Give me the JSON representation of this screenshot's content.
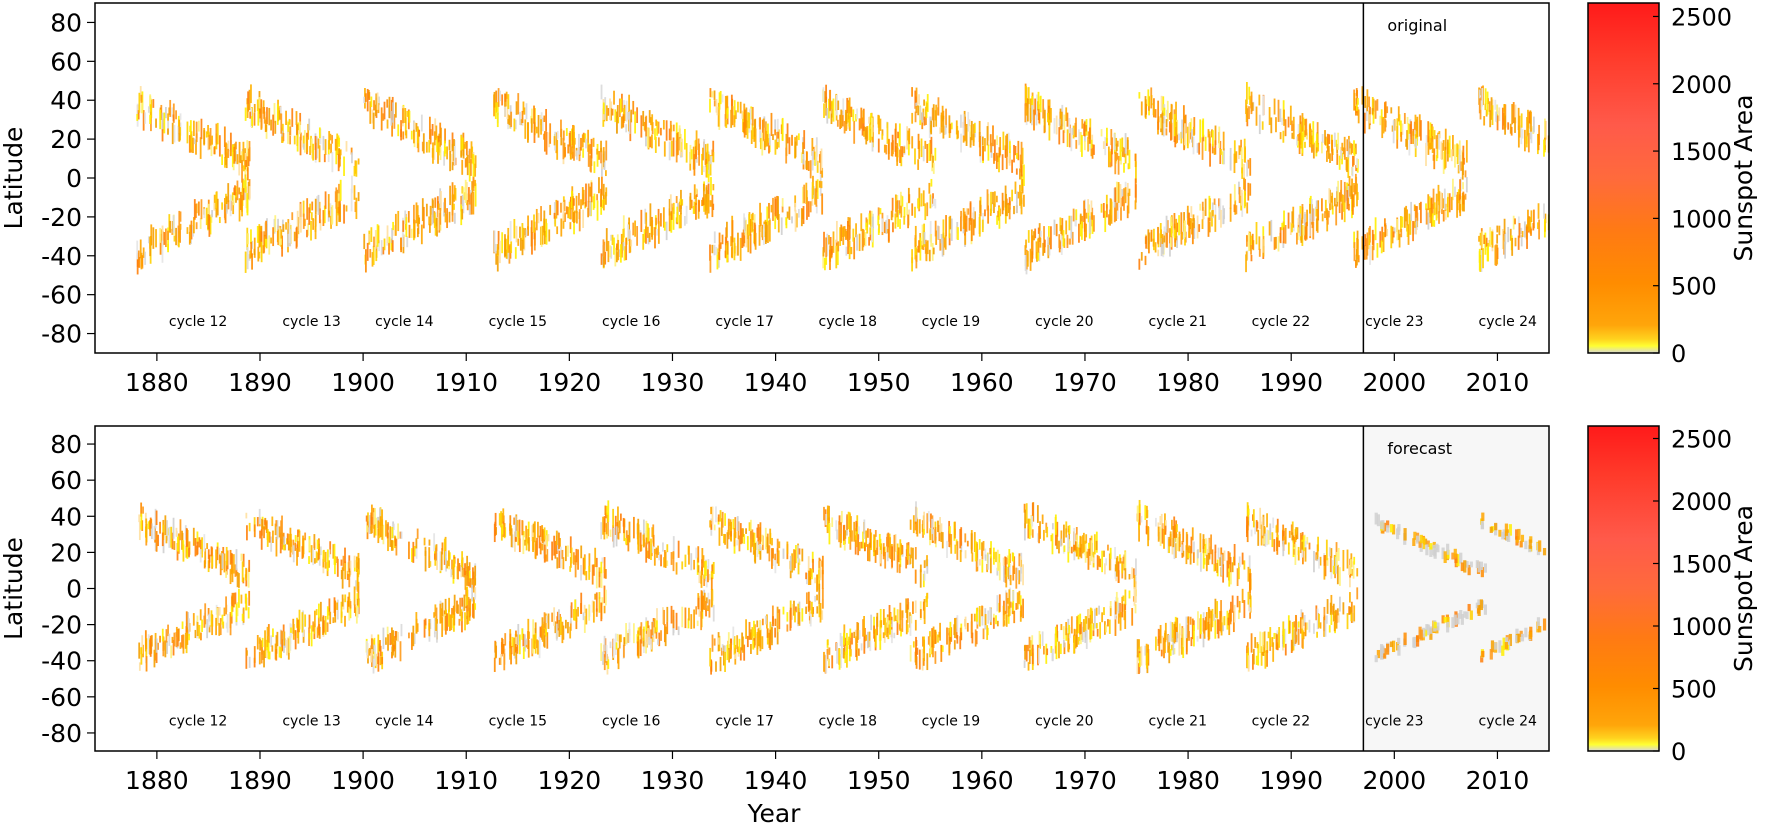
{
  "chart_data": [
    {
      "type": "heatmap",
      "subtitle": "original",
      "xlabel": "",
      "ylabel": "Latitude",
      "xlim": [
        1874,
        2015
      ],
      "ylim": [
        -90,
        90
      ],
      "x_ticks": [
        1880,
        1890,
        1900,
        1910,
        1920,
        1930,
        1940,
        1950,
        1960,
        1970,
        1980,
        1990,
        2000,
        2010
      ],
      "y_ticks": [
        80,
        60,
        40,
        20,
        0,
        -20,
        -40,
        -60,
        -80
      ],
      "split_year": 1997,
      "colorbar": {
        "label": "Sunspot Area",
        "ticks": [
          2500,
          2000,
          1500,
          1000,
          500,
          0
        ],
        "range": [
          0,
          2600
        ]
      },
      "cycles": [
        {
          "label": "cycle 12",
          "year": 1883.0,
          "label_year": 1884
        },
        {
          "label": "cycle 13",
          "year": 1893.5,
          "label_year": 1895
        },
        {
          "label": "cycle 14",
          "year": 1905.0,
          "label_year": 1904
        },
        {
          "label": "cycle 15",
          "year": 1917.5,
          "label_year": 1915
        },
        {
          "label": "cycle 16",
          "year": 1928.0,
          "label_year": 1926
        },
        {
          "label": "cycle 17",
          "year": 1938.5,
          "label_year": 1937
        },
        {
          "label": "cycle 18",
          "year": 1949.5,
          "label_year": 1947
        },
        {
          "label": "cycle 19",
          "year": 1958.0,
          "label_year": 1957
        },
        {
          "label": "cycle 20",
          "year": 1969.0,
          "label_year": 1968
        },
        {
          "label": "cycle 21",
          "year": 1980.0,
          "label_year": 1979
        },
        {
          "label": "cycle 22",
          "year": 1990.5,
          "label_year": 1989
        },
        {
          "label": "cycle 23",
          "year": 2001.0,
          "label_year": 2000
        },
        {
          "label": "cycle 24",
          "year": 2013.0,
          "label_year": 2011
        }
      ]
    },
    {
      "type": "heatmap",
      "subtitle": "forecast",
      "xlabel": "Year",
      "ylabel": "Latitude",
      "xlim": [
        1874,
        2015
      ],
      "ylim": [
        -90,
        90
      ],
      "x_ticks": [
        1880,
        1890,
        1900,
        1910,
        1920,
        1930,
        1940,
        1950,
        1960,
        1970,
        1980,
        1990,
        2000,
        2010
      ],
      "y_ticks": [
        80,
        60,
        40,
        20,
        0,
        -20,
        -40,
        -60,
        -80
      ],
      "split_year": 1997,
      "colorbar": {
        "label": "Sunspot Area",
        "ticks": [
          2500,
          2000,
          1500,
          1000,
          500,
          0
        ],
        "range": [
          0,
          2600
        ]
      },
      "cycles": [
        {
          "label": "cycle 12",
          "year": 1883.0,
          "label_year": 1884
        },
        {
          "label": "cycle 13",
          "year": 1893.5,
          "label_year": 1895
        },
        {
          "label": "cycle 14",
          "year": 1905.0,
          "label_year": 1904
        },
        {
          "label": "cycle 15",
          "year": 1917.5,
          "label_year": 1915
        },
        {
          "label": "cycle 16",
          "year": 1928.0,
          "label_year": 1926
        },
        {
          "label": "cycle 17",
          "year": 1938.5,
          "label_year": 1937
        },
        {
          "label": "cycle 18",
          "year": 1949.5,
          "label_year": 1947
        },
        {
          "label": "cycle 19",
          "year": 1958.0,
          "label_year": 1957
        },
        {
          "label": "cycle 20",
          "year": 1969.0,
          "label_year": 1968
        },
        {
          "label": "cycle 21",
          "year": 1980.0,
          "label_year": 1979
        },
        {
          "label": "cycle 22",
          "year": 1990.5,
          "label_year": 1989
        },
        {
          "label": "cycle 23",
          "year": 2003.0,
          "label_year": 2000
        },
        {
          "label": "cycle 24",
          "year": 2013.0,
          "label_year": 2011
        }
      ]
    }
  ],
  "colors": {
    "bar_stops": [
      "#d8d8d8",
      "#ffff33",
      "#ffd21e",
      "#ffa50a",
      "#ff8c00",
      "#ff7a14",
      "#ff6a3c",
      "#ff5a4a",
      "#ff3a2a",
      "#ff1a1a"
    ]
  }
}
